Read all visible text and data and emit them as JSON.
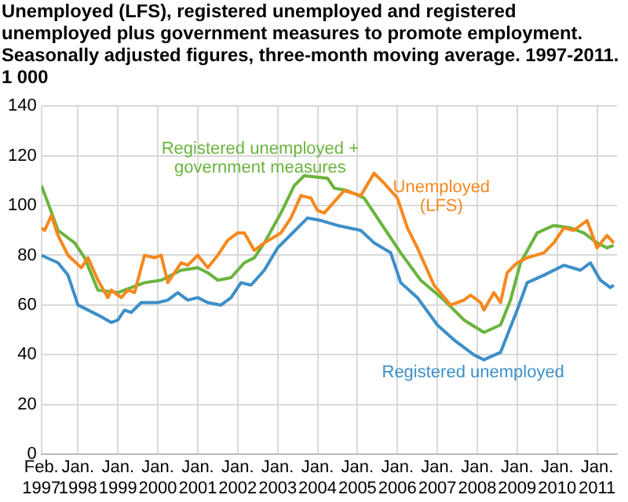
{
  "chart_data": {
    "type": "line",
    "title": "Unemployed (LFS), registered unemployed and registered\nunemployed plus government measures to promote employment.\nSeasonally adjusted figures, three-month moving average. 1997-2011.",
    "ylabel": "1 000",
    "xlim": [
      "1997-02",
      "2011-07"
    ],
    "ylim": [
      0,
      140
    ],
    "yticks": [
      0,
      20,
      40,
      60,
      80,
      100,
      120,
      140
    ],
    "xticks": [
      {
        "value": "1997-02",
        "label": "Feb. 1997"
      },
      {
        "value": "1998-01",
        "label": "Jan. 1998"
      },
      {
        "value": "1999-01",
        "label": "Jan. 1999"
      },
      {
        "value": "2000-01",
        "label": "Jan. 2000"
      },
      {
        "value": "2001-01",
        "label": "Jan. 2001"
      },
      {
        "value": "2002-01",
        "label": "Jan. 2002"
      },
      {
        "value": "2003-01",
        "label": "Jan. 2003"
      },
      {
        "value": "2004-01",
        "label": "Jan. 2004"
      },
      {
        "value": "2005-01",
        "label": "Jan. 2005"
      },
      {
        "value": "2006-01",
        "label": "Jan. 2006"
      },
      {
        "value": "2007-01",
        "label": "Jan. 2007"
      },
      {
        "value": "2008-01",
        "label": "Jan. 2008"
      },
      {
        "value": "2009-01",
        "label": "Jan. 2009"
      },
      {
        "value": "2010-01",
        "label": "Jan. 2010"
      },
      {
        "value": "2011-01",
        "label": "Jan. 2011"
      }
    ],
    "grid": true,
    "legend": false,
    "marker": "none",
    "line_style": "solid",
    "series": [
      {
        "name": "Unemployed (LFS)",
        "color": "#f7881d",
        "x": [
          "1997-02",
          "1997-03",
          "1997-05",
          "1997-07",
          "1997-10",
          "1998-02",
          "1998-04",
          "1998-07",
          "1998-10",
          "1998-11",
          "1999-02",
          "1999-04",
          "1999-06",
          "1999-09",
          "1999-12",
          "2000-02",
          "2000-04",
          "2000-08",
          "2000-10",
          "2001-01",
          "2001-04",
          "2001-07",
          "2001-10",
          "2002-01",
          "2002-03",
          "2002-06",
          "2002-09",
          "2003-02",
          "2003-05",
          "2003-08",
          "2003-11",
          "2004-01",
          "2004-03",
          "2004-05",
          "2004-09",
          "2005-02",
          "2005-06",
          "2005-09",
          "2006-01",
          "2006-04",
          "2006-07",
          "2006-12",
          "2007-05",
          "2007-09",
          "2007-11",
          "2008-02",
          "2008-03",
          "2008-06",
          "2008-08",
          "2008-10",
          "2009-01",
          "2009-04",
          "2009-09",
          "2009-12",
          "2010-03",
          "2010-06",
          "2010-10",
          "2011-01",
          "2011-04",
          "2011-06"
        ],
        "values": [
          91,
          90,
          96,
          88,
          80,
          75,
          79,
          70,
          63,
          66,
          63,
          66,
          65,
          80,
          79,
          80,
          69,
          77,
          76,
          80,
          75,
          80,
          86,
          89,
          89,
          82,
          85,
          89,
          95,
          104,
          103,
          98,
          97,
          100,
          106,
          104,
          113,
          109,
          103,
          91,
          83,
          68,
          60,
          62,
          64,
          61,
          58,
          65,
          61,
          73,
          77,
          79,
          81,
          85,
          91,
          90,
          94,
          83,
          88,
          85
        ]
      },
      {
        "name": "Registered unemployed",
        "color": "#3d8fc8",
        "x": [
          "1997-02",
          "1997-07",
          "1997-10",
          "1998-01",
          "1998-07",
          "1998-11",
          "1999-01",
          "1999-03",
          "1999-05",
          "1999-08",
          "2000-01",
          "2000-04",
          "2000-07",
          "2000-10",
          "2001-01",
          "2001-04",
          "2001-08",
          "2001-11",
          "2002-02",
          "2002-05",
          "2002-09",
          "2003-01",
          "2003-07",
          "2003-10",
          "2004-02",
          "2004-07",
          "2005-02",
          "2005-06",
          "2005-11",
          "2006-02",
          "2006-07",
          "2007-01",
          "2007-06",
          "2007-12",
          "2008-03",
          "2008-08",
          "2009-01",
          "2009-04",
          "2009-09",
          "2010-03",
          "2010-08",
          "2010-11",
          "2011-02",
          "2011-05",
          "2011-06"
        ],
        "values": [
          80,
          77,
          72,
          60,
          56,
          53,
          54,
          58,
          57,
          61,
          61,
          62,
          65,
          62,
          63,
          61,
          60,
          63,
          69,
          68,
          74,
          83,
          91,
          95,
          94,
          92,
          90,
          85,
          81,
          69,
          63,
          52,
          46,
          40,
          38,
          41,
          58,
          69,
          72,
          76,
          74,
          77,
          70,
          67,
          68
        ]
      },
      {
        "name": "Registered unemployed + government measures",
        "color": "#6ab43e",
        "x": [
          "1997-02",
          "1997-04",
          "1997-07",
          "1997-12",
          "1998-03",
          "1998-07",
          "1999-01",
          "1999-05",
          "1999-09",
          "2000-02",
          "2000-08",
          "2001-01",
          "2001-04",
          "2001-07",
          "2001-11",
          "2002-03",
          "2002-06",
          "2002-09",
          "2003-02",
          "2003-06",
          "2003-09",
          "2004-04",
          "2004-06",
          "2004-10",
          "2005-03",
          "2005-09",
          "2006-02",
          "2006-08",
          "2007-03",
          "2007-09",
          "2008-03",
          "2008-08",
          "2008-11",
          "2009-02",
          "2009-07",
          "2009-12",
          "2010-05",
          "2010-09",
          "2011-01",
          "2011-04",
          "2011-06"
        ],
        "values": [
          108,
          101,
          90,
          85,
          79,
          66,
          65,
          67,
          69,
          70,
          74,
          75,
          73,
          70,
          71,
          77,
          79,
          85,
          97,
          108,
          112,
          111,
          107,
          106,
          103,
          91,
          81,
          70,
          62,
          54,
          49,
          52,
          62,
          77,
          89,
          92,
          91,
          89,
          85,
          83,
          84
        ]
      }
    ]
  }
}
